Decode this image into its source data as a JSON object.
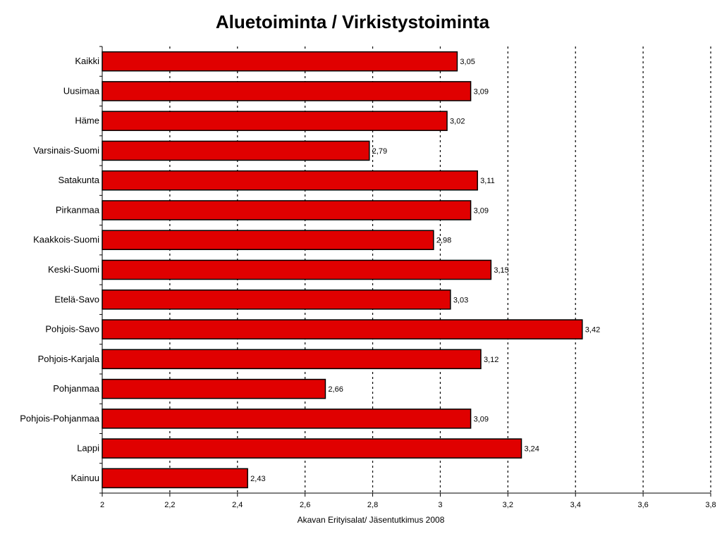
{
  "chart_data": {
    "type": "bar",
    "orientation": "horizontal",
    "title": "Aluetoiminta / Virkistystoiminta",
    "xlabel": "Akavan Erityisalat/ Jäsentutkimus 2008",
    "ylabel": "",
    "xlim": [
      2,
      3.8
    ],
    "ticks": [
      "2",
      "2,2",
      "2,4",
      "2,6",
      "2,8",
      "3",
      "3,2",
      "3,4",
      "3,6",
      "3,8"
    ],
    "tick_values": [
      2,
      2.2,
      2.4,
      2.6,
      2.8,
      3,
      3.2,
      3.4,
      3.6,
      3.8
    ],
    "grid": true,
    "legend": "none",
    "bar_color": "#e00000",
    "categories": [
      "Kaikki",
      "Uusimaa",
      "Häme",
      "Varsinais-Suomi",
      "Satakunta",
      "Pirkanmaa",
      "Kaakkois-Suomi",
      "Keski-Suomi",
      "Etelä-Savo",
      "Pohjois-Savo",
      "Pohjois-Karjala",
      "Pohjanmaa",
      "Pohjois-Pohjanmaa",
      "Lappi",
      "Kainuu"
    ],
    "values": [
      3.05,
      3.09,
      3.02,
      2.79,
      3.11,
      3.09,
      2.98,
      3.15,
      3.03,
      3.42,
      3.12,
      2.66,
      3.09,
      3.24,
      2.43
    ],
    "data_labels": [
      "3,05",
      "3,09",
      "3,02",
      "2,79",
      "3,11",
      "3,09",
      "2,98",
      "3,15",
      "3,03",
      "3,42",
      "3,12",
      "2,66",
      "3,09",
      "3,24",
      "2,43"
    ]
  }
}
